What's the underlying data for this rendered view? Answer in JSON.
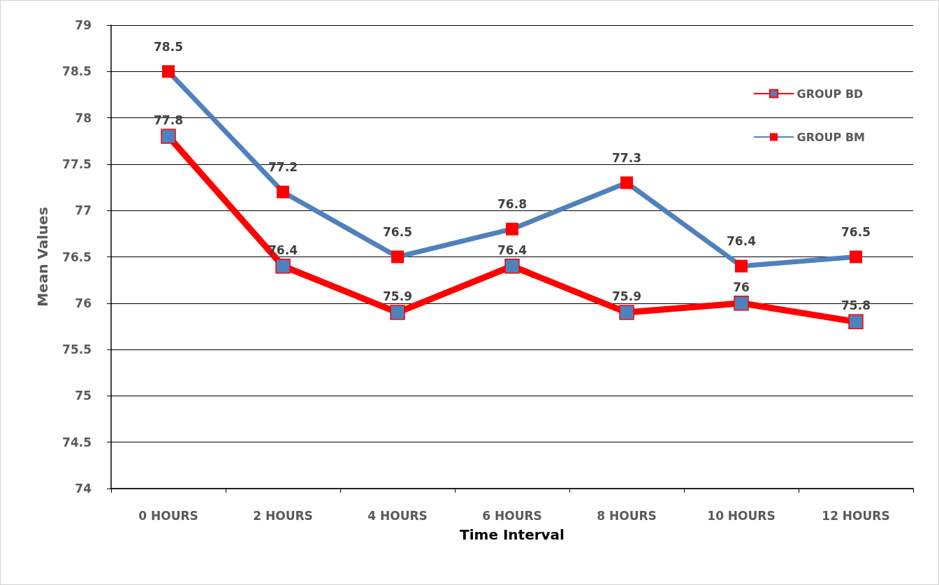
{
  "chart_data": {
    "type": "line",
    "xlabel": "Time Interval",
    "ylabel": "Mean Values",
    "categories": [
      "0 HOURS",
      "2 HOURS",
      "4 HOURS",
      "6 HOURS",
      "8 HOURS",
      "10 HOURS",
      "12 HOURS"
    ],
    "series": [
      {
        "name": "GROUP BD",
        "color": "#ff0000",
        "values": [
          77.8,
          76.4,
          75.9,
          76.4,
          75.9,
          76,
          75.8
        ]
      },
      {
        "name": "GROUP BM",
        "color": "#4f81bd",
        "values": [
          78.5,
          77.2,
          76.5,
          76.8,
          77.3,
          76.4,
          76.5
        ]
      }
    ],
    "ylim": [
      74,
      79
    ],
    "yticks": [
      74,
      74.5,
      75,
      75.5,
      76,
      76.5,
      77,
      77.5,
      78,
      78.5,
      79
    ],
    "grid": "y",
    "legend": "top right",
    "marker": "square",
    "line_style": "solid",
    "data_labels": true
  }
}
